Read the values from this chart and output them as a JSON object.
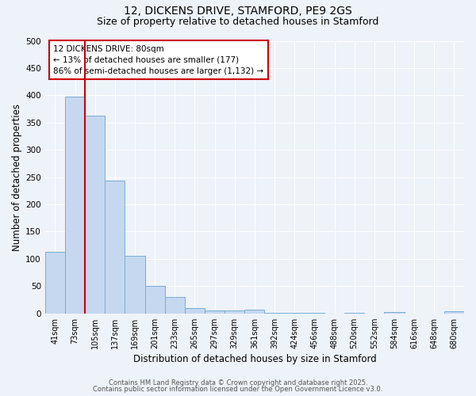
{
  "title": "12, DICKENS DRIVE, STAMFORD, PE9 2GS",
  "subtitle": "Size of property relative to detached houses in Stamford",
  "xlabel": "Distribution of detached houses by size in Stamford",
  "ylabel": "Number of detached properties",
  "categories": [
    "41sqm",
    "73sqm",
    "105sqm",
    "137sqm",
    "169sqm",
    "201sqm",
    "233sqm",
    "265sqm",
    "297sqm",
    "329sqm",
    "361sqm",
    "392sqm",
    "424sqm",
    "456sqm",
    "488sqm",
    "520sqm",
    "552sqm",
    "584sqm",
    "616sqm",
    "648sqm",
    "680sqm"
  ],
  "values": [
    113,
    398,
    362,
    243,
    105,
    50,
    30,
    9,
    6,
    5,
    7,
    1,
    1,
    1,
    0,
    1,
    0,
    3,
    0,
    0,
    4
  ],
  "bar_color": "#c5d8f0",
  "bar_edge_color": "#7aadd4",
  "vline_x": 1.5,
  "vline_color": "#cc0000",
  "annotation_text": "12 DICKENS DRIVE: 80sqm\n← 13% of detached houses are smaller (177)\n86% of semi-detached houses are larger (1,132) →",
  "annotation_box_color": "#ffffff",
  "annotation_box_edge": "#cc0000",
  "ylim": [
    0,
    500
  ],
  "yticks": [
    0,
    50,
    100,
    150,
    200,
    250,
    300,
    350,
    400,
    450,
    500
  ],
  "background_color": "#eef2f9",
  "grid_color": "#ffffff",
  "footer_line1": "Contains HM Land Registry data © Crown copyright and database right 2025.",
  "footer_line2": "Contains public sector information licensed under the Open Government Licence v3.0.",
  "title_fontsize": 10,
  "subtitle_fontsize": 9,
  "tick_fontsize": 7,
  "label_fontsize": 8.5
}
